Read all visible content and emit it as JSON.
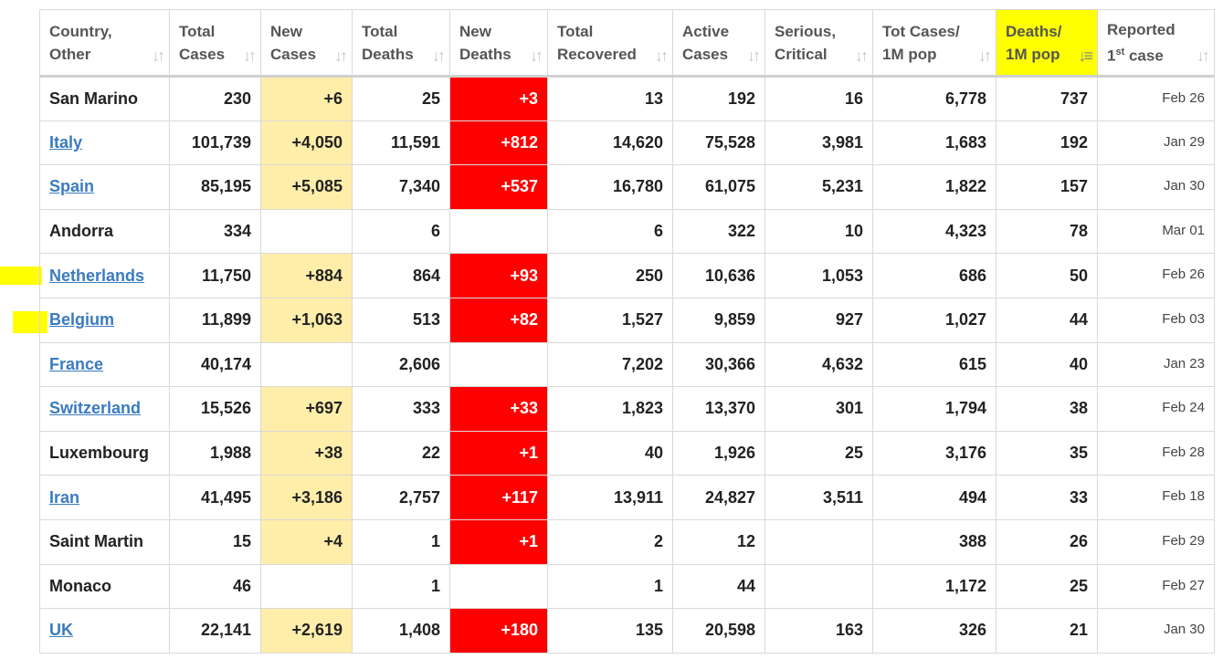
{
  "colors": {
    "highlight": "#ffff00",
    "link": "#3a7bbf",
    "new_cases_bg": "#ffeeaa",
    "new_deaths_bg": "#ff0000"
  },
  "icons": {
    "sort": "sort-arrows-icon",
    "sort_active": "sort-desc-icon"
  },
  "headers": [
    {
      "line1": "Country,",
      "line2": "Other"
    },
    {
      "line1": "Total",
      "line2": "Cases"
    },
    {
      "line1": "New",
      "line2": "Cases"
    },
    {
      "line1": "Total",
      "line2": "Deaths"
    },
    {
      "line1": "New",
      "line2": "Deaths"
    },
    {
      "line1": "Total",
      "line2": "Recovered"
    },
    {
      "line1": "Active",
      "line2": "Cases"
    },
    {
      "line1": "Serious,",
      "line2": "Critical"
    },
    {
      "line1": "Tot Cases/",
      "line2": "1M pop"
    },
    {
      "line1": "Deaths/",
      "line2": "1M pop"
    },
    {
      "line1": "Reported",
      "line2_sup": "st",
      "line2_pre": "1",
      "line2_post": " case"
    }
  ],
  "sort_glyph": "↓↑",
  "sort_glyph_active": "↓≡",
  "rows": [
    {
      "country": "San Marino",
      "link": false,
      "total_cases": "230",
      "new_cases": "+6",
      "total_deaths": "25",
      "new_deaths": "+3",
      "total_recovered": "13",
      "active_cases": "192",
      "serious": "16",
      "tot_cases_1m": "6,778",
      "deaths_1m": "737",
      "first_case": "Feb 26"
    },
    {
      "country": "Italy",
      "link": true,
      "total_cases": "101,739",
      "new_cases": "+4,050",
      "total_deaths": "11,591",
      "new_deaths": "+812",
      "total_recovered": "14,620",
      "active_cases": "75,528",
      "serious": "3,981",
      "tot_cases_1m": "1,683",
      "deaths_1m": "192",
      "first_case": "Jan 29"
    },
    {
      "country": "Spain",
      "link": true,
      "total_cases": "85,195",
      "new_cases": "+5,085",
      "total_deaths": "7,340",
      "new_deaths": "+537",
      "total_recovered": "16,780",
      "active_cases": "61,075",
      "serious": "5,231",
      "tot_cases_1m": "1,822",
      "deaths_1m": "157",
      "first_case": "Jan 30"
    },
    {
      "country": "Andorra",
      "link": false,
      "total_cases": "334",
      "new_cases": "",
      "total_deaths": "6",
      "new_deaths": "",
      "total_recovered": "6",
      "active_cases": "322",
      "serious": "10",
      "tot_cases_1m": "4,323",
      "deaths_1m": "78",
      "first_case": "Mar 01"
    },
    {
      "country": "Netherlands",
      "link": true,
      "total_cases": "11,750",
      "new_cases": "+884",
      "total_deaths": "864",
      "new_deaths": "+93",
      "total_recovered": "250",
      "active_cases": "10,636",
      "serious": "1,053",
      "tot_cases_1m": "686",
      "deaths_1m": "50",
      "first_case": "Feb 26"
    },
    {
      "country": "Belgium",
      "link": true,
      "total_cases": "11,899",
      "new_cases": "+1,063",
      "total_deaths": "513",
      "new_deaths": "+82",
      "total_recovered": "1,527",
      "active_cases": "9,859",
      "serious": "927",
      "tot_cases_1m": "1,027",
      "deaths_1m": "44",
      "first_case": "Feb 03"
    },
    {
      "country": "France",
      "link": true,
      "total_cases": "40,174",
      "new_cases": "",
      "total_deaths": "2,606",
      "new_deaths": "",
      "total_recovered": "7,202",
      "active_cases": "30,366",
      "serious": "4,632",
      "tot_cases_1m": "615",
      "deaths_1m": "40",
      "first_case": "Jan 23"
    },
    {
      "country": "Switzerland",
      "link": true,
      "total_cases": "15,526",
      "new_cases": "+697",
      "total_deaths": "333",
      "new_deaths": "+33",
      "total_recovered": "1,823",
      "active_cases": "13,370",
      "serious": "301",
      "tot_cases_1m": "1,794",
      "deaths_1m": "38",
      "first_case": "Feb 24"
    },
    {
      "country": "Luxembourg",
      "link": false,
      "total_cases": "1,988",
      "new_cases": "+38",
      "total_deaths": "22",
      "new_deaths": "+1",
      "total_recovered": "40",
      "active_cases": "1,926",
      "serious": "25",
      "tot_cases_1m": "3,176",
      "deaths_1m": "35",
      "first_case": "Feb 28"
    },
    {
      "country": "Iran",
      "link": true,
      "total_cases": "41,495",
      "new_cases": "+3,186",
      "total_deaths": "2,757",
      "new_deaths": "+117",
      "total_recovered": "13,911",
      "active_cases": "24,827",
      "serious": "3,511",
      "tot_cases_1m": "494",
      "deaths_1m": "33",
      "first_case": "Feb 18"
    },
    {
      "country": "Saint Martin",
      "link": false,
      "total_cases": "15",
      "new_cases": "+4",
      "total_deaths": "1",
      "new_deaths": "+1",
      "total_recovered": "2",
      "active_cases": "12",
      "serious": "",
      "tot_cases_1m": "388",
      "deaths_1m": "26",
      "first_case": "Feb 29"
    },
    {
      "country": "Monaco",
      "link": false,
      "total_cases": "46",
      "new_cases": "",
      "total_deaths": "1",
      "new_deaths": "",
      "total_recovered": "1",
      "active_cases": "44",
      "serious": "",
      "tot_cases_1m": "1,172",
      "deaths_1m": "25",
      "first_case": "Feb 27"
    },
    {
      "country": "UK",
      "link": true,
      "total_cases": "22,141",
      "new_cases": "+2,619",
      "total_deaths": "1,408",
      "new_deaths": "+180",
      "total_recovered": "135",
      "active_cases": "20,598",
      "serious": "163",
      "tot_cases_1m": "326",
      "deaths_1m": "21",
      "first_case": "Jan 30"
    }
  ]
}
